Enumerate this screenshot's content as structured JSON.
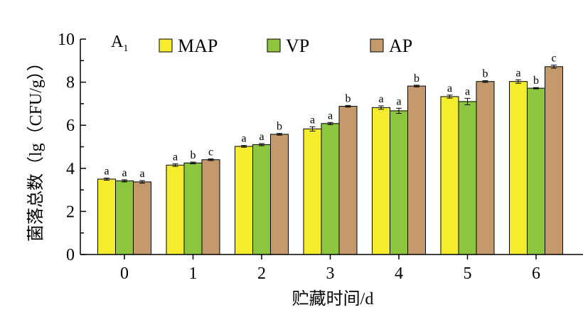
{
  "chart_data": {
    "type": "bar",
    "panel_label": "A",
    "panel_label_sub": "1",
    "categories": [
      "0",
      "1",
      "2",
      "3",
      "4",
      "5",
      "6"
    ],
    "xlabel": "贮藏时间/d",
    "ylabel": "菌落总数（lg（CFU/g））",
    "ylim": [
      0,
      10
    ],
    "yticks": [
      "0",
      "2",
      "4",
      "6",
      "8",
      "10"
    ],
    "grid": false,
    "legend_position": "top",
    "series": [
      {
        "name": "MAP",
        "color": "#f5ec2d",
        "values": [
          3.5,
          4.15,
          5.02,
          5.83,
          6.82,
          7.33,
          8.03
        ],
        "errors": [
          0.05,
          0.06,
          0.04,
          0.1,
          0.08,
          0.07,
          0.08
        ],
        "letters": [
          "a",
          "a",
          "a",
          "a",
          "a",
          "a",
          "a"
        ]
      },
      {
        "name": "VP",
        "color": "#8cc63f",
        "values": [
          3.42,
          4.25,
          5.1,
          6.08,
          6.67,
          7.1,
          7.72
        ],
        "errors": [
          0.05,
          0.04,
          0.05,
          0.05,
          0.12,
          0.15,
          0.03
        ],
        "letters": [
          "a",
          "b",
          "a",
          "a",
          "a",
          "a",
          "b"
        ]
      },
      {
        "name": "AP",
        "color": "#c49a6c",
        "values": [
          3.37,
          4.4,
          5.58,
          6.88,
          7.82,
          8.03,
          8.72
        ],
        "errors": [
          0.06,
          0.04,
          0.04,
          0.04,
          0.04,
          0.04,
          0.07
        ],
        "letters": [
          "a",
          "c",
          "b",
          "b",
          "b",
          "b",
          "c"
        ]
      }
    ]
  }
}
